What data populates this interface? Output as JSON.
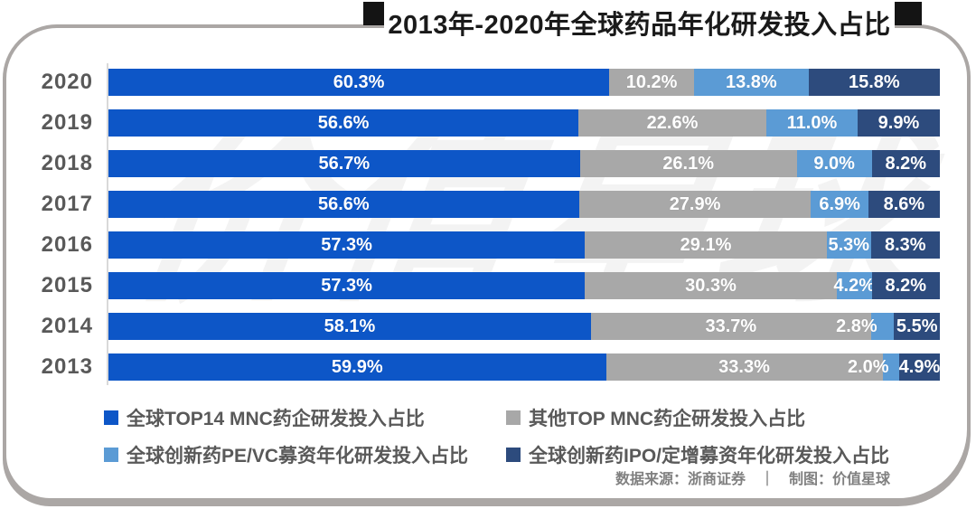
{
  "title": "2013年-2020年全球药品年化研发投入占比",
  "watermark": "价值星球",
  "footer": {
    "text": "数据来源：浙商证券　｜　制图：价值星球"
  },
  "colors": {
    "top14_blue": "#0d56c7",
    "other_gray": "#a8a8a8",
    "pevc_lightblue": "#5b9bd5",
    "ipo_navy": "#2d4b7d",
    "border_gray": "#aba7a5",
    "axis_gray": "#d9d9d9",
    "text_gray": "#595959"
  },
  "chart_data": {
    "type": "bar",
    "orientation": "horizontal",
    "stacked": true,
    "value_suffix": "%",
    "xlim": [
      0,
      100
    ],
    "categories": [
      "2020",
      "2019",
      "2018",
      "2017",
      "2016",
      "2015",
      "2014",
      "2013"
    ],
    "series": [
      {
        "name": "全球TOP14 MNC药企研发投入占比",
        "color": "#0d56c7",
        "values": [
          60.3,
          56.6,
          56.7,
          56.6,
          57.3,
          57.3,
          58.1,
          59.9
        ]
      },
      {
        "name": "其他TOP MNC药企研发投入占比",
        "color": "#a8a8a8",
        "values": [
          10.2,
          22.6,
          26.1,
          27.9,
          29.1,
          30.3,
          33.7,
          33.3
        ]
      },
      {
        "name": "全球创新药PE/VC募资年化研发投入占比",
        "color": "#5b9bd5",
        "values": [
          13.8,
          11.0,
          9.0,
          6.9,
          5.3,
          4.2,
          2.8,
          2.0
        ]
      },
      {
        "name": "全球创新药IPO/定增募资年化研发投入占比",
        "color": "#2d4b7d",
        "values": [
          15.8,
          9.9,
          8.2,
          8.6,
          8.3,
          8.2,
          5.5,
          4.9
        ]
      }
    ],
    "legend_order": [
      0,
      1,
      2,
      3
    ],
    "legend_position": "bottom"
  }
}
